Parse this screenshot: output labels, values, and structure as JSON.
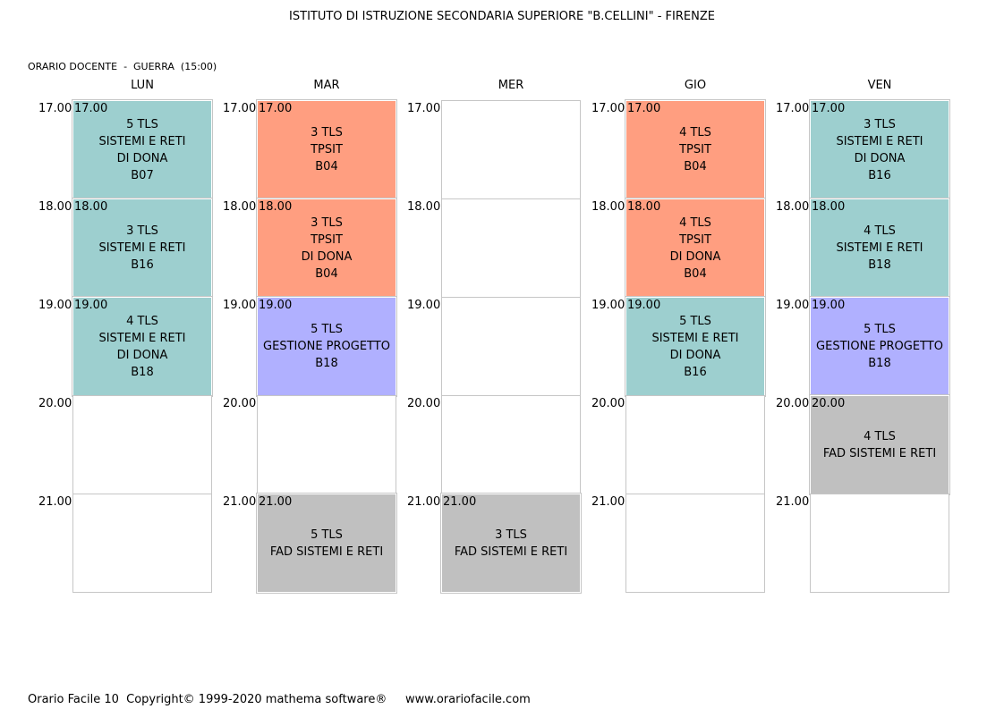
{
  "title": "ISTITUTO DI ISTRUZIONE SECONDARIA SUPERIORE \"B.CELLINI\" - FIRENZE",
  "subtitle": "ORARIO DOCENTE  -  GUERRA  (15:00)",
  "colors": {
    "teal": "#9dcfcf",
    "salmon": "#ff9e80",
    "lavender": "#b0b0ff",
    "gray": "#c0c0c0"
  },
  "times": [
    "17.00",
    "18.00",
    "19.00",
    "20.00",
    "21.00"
  ],
  "days": [
    {
      "name": "LUN",
      "slots": [
        {
          "time": "17.00",
          "lines": [
            "5 TLS",
            "SISTEMI E RETI",
            "DI DONA",
            "B07"
          ],
          "color": "teal"
        },
        {
          "time": "18.00",
          "lines": [
            "3 TLS",
            "SISTEMI E RETI",
            "B16"
          ],
          "color": "teal"
        },
        {
          "time": "19.00",
          "lines": [
            "4 TLS",
            "SISTEMI E RETI",
            "DI DONA",
            "B18"
          ],
          "color": "teal"
        },
        null,
        null
      ]
    },
    {
      "name": "MAR",
      "slots": [
        {
          "time": "17.00",
          "lines": [
            "3 TLS",
            "TPSIT",
            "B04"
          ],
          "color": "salmon"
        },
        {
          "time": "18.00",
          "lines": [
            "3 TLS",
            "TPSIT",
            "DI DONA",
            "B04"
          ],
          "color": "salmon"
        },
        {
          "time": "19.00",
          "lines": [
            "5 TLS",
            "GESTIONE PROGETTO",
            "B18"
          ],
          "color": "lavender"
        },
        null,
        {
          "time": "21.00",
          "lines": [
            "5 TLS",
            "FAD SISTEMI E RETI"
          ],
          "color": "gray"
        }
      ]
    },
    {
      "name": "MER",
      "slots": [
        null,
        null,
        null,
        null,
        {
          "time": "21.00",
          "lines": [
            "3 TLS",
            "FAD SISTEMI E RETI"
          ],
          "color": "gray"
        }
      ]
    },
    {
      "name": "GIO",
      "slots": [
        {
          "time": "17.00",
          "lines": [
            "4 TLS",
            "TPSIT",
            "B04"
          ],
          "color": "salmon"
        },
        {
          "time": "18.00",
          "lines": [
            "4 TLS",
            "TPSIT",
            "DI DONA",
            "B04"
          ],
          "color": "salmon"
        },
        {
          "time": "19.00",
          "lines": [
            "5 TLS",
            "SISTEMI E RETI",
            "DI DONA",
            "B16"
          ],
          "color": "teal"
        },
        null,
        null
      ]
    },
    {
      "name": "VEN",
      "slots": [
        {
          "time": "17.00",
          "lines": [
            "3 TLS",
            "SISTEMI E RETI",
            "DI DONA",
            "B16"
          ],
          "color": "teal"
        },
        {
          "time": "18.00",
          "lines": [
            "4 TLS",
            "SISTEMI E RETI",
            "B18"
          ],
          "color": "teal"
        },
        {
          "time": "19.00",
          "lines": [
            "5 TLS",
            "GESTIONE PROGETTO",
            "B18"
          ],
          "color": "lavender"
        },
        {
          "time": "20.00",
          "lines": [
            "4 TLS",
            "FAD SISTEMI E RETI"
          ],
          "color": "gray"
        },
        null
      ]
    }
  ],
  "footer": "Orario Facile 10  Copyright© 1999-2020 mathema software®     www.orariofacile.com"
}
